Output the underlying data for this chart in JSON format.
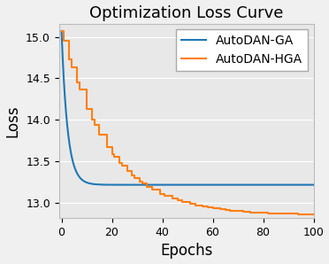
{
  "title": "Optimization Loss Curve",
  "xlabel": "Epochs",
  "ylabel": "Loss",
  "xlim": [
    -1,
    100
  ],
  "ylim": [
    12.82,
    15.16
  ],
  "yticks": [
    13.0,
    13.5,
    14.0,
    14.5,
    15.0
  ],
  "xticks": [
    0,
    20,
    40,
    60,
    80,
    100
  ],
  "line_ga_color": "#1f77b4",
  "line_hga_color": "#ff7f0e",
  "legend_labels": [
    "AutoDAN-GA",
    "AutoDAN-HGA"
  ],
  "plot_bg_color": "#e8e8e8",
  "fig_bg_color": "#f0f0f0",
  "grid_color": "white",
  "title_fontsize": 13,
  "label_fontsize": 12,
  "tick_fontsize": 9,
  "legend_fontsize": 10
}
